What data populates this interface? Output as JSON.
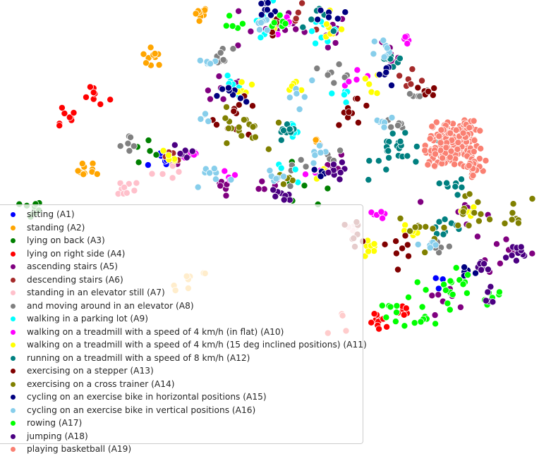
{
  "chart_data": {
    "type": "scatter",
    "title": "",
    "xlabel": "",
    "ylabel": "",
    "axes_visible": false,
    "grid": false,
    "legend_placement": "lower-left",
    "xlim": [
      0,
      100
    ],
    "ylim": [
      0,
      100
    ],
    "point_outline": "#ffffff",
    "series": [
      {
        "name": "sitting (A1)",
        "color": "#0000ff",
        "clusters": [
          [
            30,
            64,
            4,
            6
          ],
          [
            83,
            37,
            4,
            5
          ]
        ]
      },
      {
        "name": "standing (A2)",
        "color": "#ffa500",
        "clusters": [
          [
            37,
            98,
            2,
            9
          ],
          [
            28,
            88,
            3,
            10
          ],
          [
            16,
            62,
            3,
            10
          ],
          [
            35,
            36,
            5,
            8
          ],
          [
            59,
            69,
            1,
            5
          ]
        ]
      },
      {
        "name": "lying on back (A3)",
        "color": "#008000",
        "clusters": [
          [
            5,
            53,
            3,
            10
          ],
          [
            27,
            66,
            5,
            5
          ],
          [
            56,
            57,
            8,
            6
          ]
        ]
      },
      {
        "name": "lying on right side (A4)",
        "color": "#ff0000",
        "clusters": [
          [
            17,
            79,
            4,
            8
          ],
          [
            11,
            74,
            4,
            8
          ],
          [
            71,
            27,
            3,
            10
          ],
          [
            75,
            30,
            2,
            6
          ],
          [
            65,
            28,
            6,
            4
          ]
        ]
      },
      {
        "name": "ascending stairs (A5)",
        "color": "#800080",
        "clusters": [
          [
            49,
            95,
            9,
            10
          ],
          [
            60,
            93,
            7,
            9
          ],
          [
            72,
            89,
            6,
            8
          ],
          [
            41,
            81,
            7,
            8
          ],
          [
            33,
            65,
            4,
            6
          ],
          [
            42,
            58,
            4,
            6
          ],
          [
            51,
            59,
            4,
            6
          ],
          [
            61,
            63,
            5,
            7
          ],
          [
            87,
            52,
            7,
            8
          ],
          [
            94,
            44,
            7,
            8
          ],
          [
            83,
            33,
            5,
            8
          ]
        ]
      },
      {
        "name": "descending stairs (A6)",
        "color": "#a52a2a",
        "clusters": [
          [
            55,
            97,
            4,
            5
          ],
          [
            77,
            82,
            4,
            6
          ],
          [
            32,
            66,
            3,
            4
          ]
        ]
      },
      {
        "name": "standing in an elevator still (A7)",
        "color": "#ffc0cb",
        "clusters": [
          [
            22,
            58,
            4,
            10
          ],
          [
            30,
            62,
            3,
            5
          ],
          [
            66,
            48,
            4,
            6
          ]
        ]
      },
      {
        "name": "and moving around in an elevator (A8)",
        "color": "#808080",
        "clusters": [
          [
            41,
            88,
            3,
            8
          ],
          [
            63,
            85,
            4,
            8
          ],
          [
            78,
            80,
            3,
            6
          ],
          [
            24,
            68,
            3,
            6
          ],
          [
            55,
            62,
            3,
            5
          ],
          [
            74,
            72,
            3,
            6
          ],
          [
            82,
            45,
            4,
            6
          ],
          [
            62,
            66,
            4,
            5
          ]
        ]
      },
      {
        "name": "walking in a parking lot (A9)",
        "color": "#00ffff",
        "clusters": [
          [
            49,
            97,
            5,
            8
          ],
          [
            60,
            94,
            4,
            8
          ],
          [
            43,
            81,
            4,
            6
          ],
          [
            64,
            80,
            4,
            6
          ],
          [
            54,
            71,
            2,
            6
          ],
          [
            53,
            62,
            3,
            5
          ]
        ]
      },
      {
        "name": "walking on a treadmill with a speed of 4 km/h (in flat) (A10)",
        "color": "#ff00ff",
        "clusters": [
          [
            53,
            95,
            3,
            5
          ],
          [
            76,
            91,
            3,
            5
          ],
          [
            67,
            84,
            4,
            5
          ],
          [
            35,
            65,
            3,
            5
          ],
          [
            59,
            62,
            4,
            5
          ],
          [
            43,
            61,
            3,
            5
          ],
          [
            70,
            52,
            4,
            6
          ]
        ]
      },
      {
        "name": "walking on a treadmill with a speed of 4 km/h (15 deg inclined positions) (A11)",
        "color": "#ffff00",
        "clusters": [
          [
            51,
            96,
            4,
            6
          ],
          [
            62,
            94,
            4,
            8
          ],
          [
            55,
            81,
            3,
            6
          ],
          [
            69,
            82,
            4,
            5
          ],
          [
            45,
            80,
            3,
            5
          ],
          [
            31,
            65,
            3,
            5
          ],
          [
            59,
            61,
            3,
            5
          ],
          [
            69,
            44,
            3,
            8
          ],
          [
            77,
            48,
            3,
            6
          ],
          [
            87,
            52,
            3,
            5
          ]
        ]
      },
      {
        "name": "running on a treadmill with a speed of 8 km/h (A12)",
        "color": "#008080",
        "clusters": [
          [
            60,
            96,
            4,
            6
          ],
          [
            73,
            88,
            4,
            8
          ],
          [
            53,
            70,
            3,
            10
          ],
          [
            75,
            67,
            8,
            24
          ],
          [
            85,
            58,
            3,
            8
          ],
          [
            83,
            50,
            5,
            10
          ]
        ]
      },
      {
        "name": "exercising on a stepper (A13)",
        "color": "#800000",
        "clusters": [
          [
            44,
            74,
            6,
            12
          ],
          [
            66,
            76,
            5,
            10
          ],
          [
            52,
            95,
            3,
            5
          ],
          [
            79,
            80,
            4,
            6
          ],
          [
            66,
            48,
            4,
            8
          ],
          [
            75,
            45,
            4,
            8
          ]
        ]
      },
      {
        "name": "exercising on a cross trainer (A14)",
        "color": "#808000",
        "clusters": [
          [
            44,
            71,
            7,
            18
          ],
          [
            88,
            53,
            6,
            12
          ],
          [
            78,
            48,
            6,
            10
          ],
          [
            96,
            52,
            5,
            8
          ],
          [
            53,
            60,
            3,
            5
          ]
        ]
      },
      {
        "name": "cycling on an exercise bike in horizontal positions (A15)",
        "color": "#000080",
        "clusters": [
          [
            49,
            98,
            4,
            8
          ],
          [
            43,
            79,
            4,
            8
          ],
          [
            62,
            97,
            4,
            6
          ],
          [
            72,
            84,
            4,
            6
          ],
          [
            87,
            39,
            3,
            5
          ],
          [
            60,
            61,
            4,
            6
          ]
        ]
      },
      {
        "name": "cycling on an exercise bike in vertical positions (A16)",
        "color": "#87ceeb",
        "clusters": [
          [
            38,
            87,
            3,
            6
          ],
          [
            49,
            95,
            3,
            6
          ],
          [
            72,
            90,
            4,
            8
          ],
          [
            39,
            61,
            5,
            8
          ],
          [
            51,
            61,
            3,
            6
          ],
          [
            56,
            81,
            5,
            6
          ],
          [
            71,
            73,
            4,
            6
          ],
          [
            60,
            66,
            4,
            6
          ],
          [
            38,
            73,
            3,
            4
          ],
          [
            80,
            45,
            3,
            5
          ]
        ]
      },
      {
        "name": "rowing (A17)",
        "color": "#00ff00",
        "clusters": [
          [
            84,
            36,
            6,
            14
          ],
          [
            92,
            33,
            4,
            6
          ],
          [
            79,
            30,
            6,
            12
          ],
          [
            74,
            30,
            3,
            6
          ],
          [
            52,
            97,
            3,
            6
          ],
          [
            43,
            96,
            3,
            5
          ]
        ]
      },
      {
        "name": "jumping (A18)",
        "color": "#4b0082",
        "clusters": [
          [
            96,
            43,
            4,
            12
          ],
          [
            90,
            40,
            3,
            8
          ],
          [
            91,
            33,
            3,
            5
          ],
          [
            62,
            62,
            3,
            8
          ],
          [
            33,
            66,
            3,
            6
          ],
          [
            52,
            56,
            3,
            8
          ]
        ]
      },
      {
        "name": "playing basketball (A19)",
        "color": "#fa8072",
        "clusters": [
          [
            85,
            69,
            6,
            150
          ],
          [
            82,
            66,
            4,
            40
          ],
          [
            88,
            63,
            3,
            30
          ]
        ]
      }
    ]
  }
}
